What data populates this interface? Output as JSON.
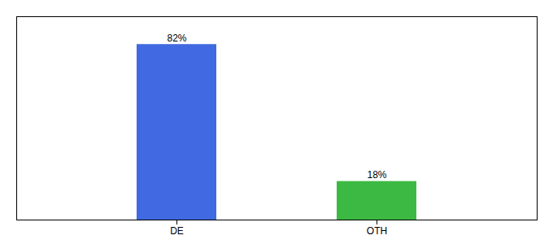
{
  "chart_data": {
    "type": "bar",
    "categories": [
      "DE",
      "OTH"
    ],
    "values": [
      82,
      18
    ],
    "colors": [
      "#4169e1",
      "#3cb943"
    ],
    "value_labels": [
      "82%",
      "18%"
    ],
    "data_labels": true,
    "ylim": [
      0,
      95
    ],
    "yticks": [],
    "tick_labels": "x"
  }
}
